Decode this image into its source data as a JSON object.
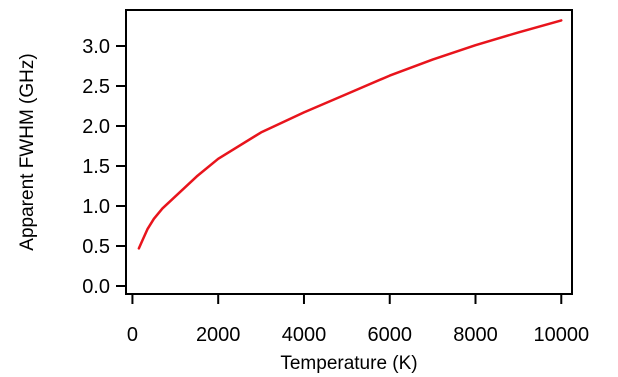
{
  "chart_data": {
    "type": "line",
    "title": "",
    "xlabel": "Temperature (K)",
    "ylabel": "Apparent FWHM (GHz)",
    "xlim": [
      -150,
      10250
    ],
    "ylim": [
      -0.1,
      3.45
    ],
    "xticks": [
      0,
      2000,
      4000,
      6000,
      8000,
      10000
    ],
    "yticks": [
      0.0,
      0.5,
      1.0,
      1.5,
      2.0,
      2.5,
      3.0
    ],
    "xtick_labels": [
      "0",
      "2000",
      "4000",
      "6000",
      "8000",
      "10000"
    ],
    "ytick_labels": [
      "0.0",
      "0.5",
      "1.0",
      "1.5",
      "2.0",
      "2.5",
      "3.0"
    ],
    "grid": false,
    "legend": "none",
    "series": [
      {
        "color": "#e8141c",
        "x": [
          150,
          250,
          350,
          500,
          700,
          1000,
          1500,
          2000,
          3000,
          4000,
          5000,
          6000,
          7000,
          8000,
          9000,
          10000
        ],
        "y": [
          0.47,
          0.59,
          0.71,
          0.84,
          0.97,
          1.12,
          1.37,
          1.59,
          1.92,
          2.17,
          2.4,
          2.63,
          2.83,
          3.01,
          3.17,
          3.32
        ]
      }
    ]
  }
}
